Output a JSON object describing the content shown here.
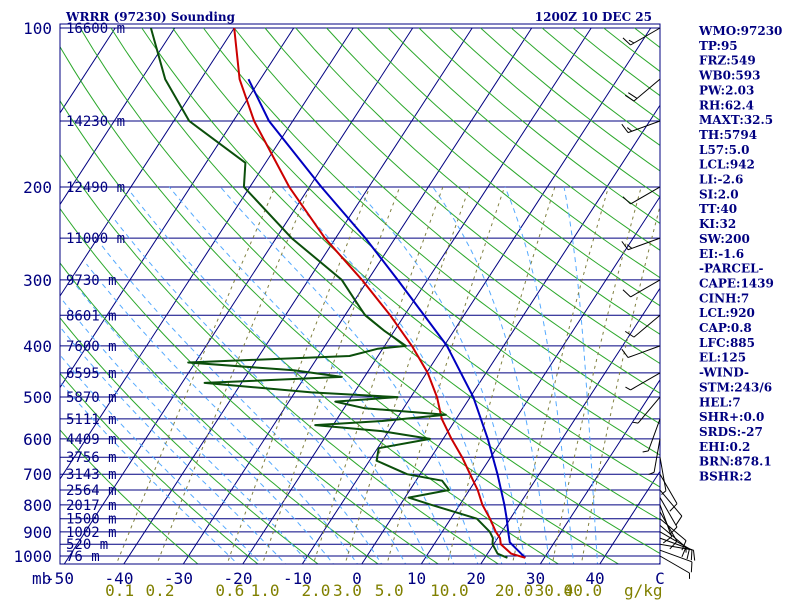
{
  "header": {
    "station": "WRRR (97230) Sounding",
    "time": "1200Z 10 DEC 25"
  },
  "colors": {
    "frame": "#000080",
    "isobar": "#000080",
    "isotherm": "#000080",
    "dry_adiabat": "#2ca82c",
    "moist_adiabat": "#55aaff",
    "mixing_ratio": "#808040",
    "temperature": "#cc0000",
    "dewpoint": "#0b4f0b",
    "parcel": "#0000c0",
    "wind": "#000000"
  },
  "chart_data": {
    "type": "skew-t",
    "title": "WRRR (97230) Sounding",
    "xlabel": "Temperature (C)",
    "ylabel": "Pressure (mb)",
    "pressure_unit": "mb",
    "mixing_ratio_unit": "g/kg",
    "pressure_ticks": [
      100,
      200,
      300,
      400,
      500,
      600,
      700,
      800,
      900,
      1000
    ],
    "temperature_ticks": [
      -50,
      -40,
      -30,
      -20,
      -10,
      0,
      10,
      20,
      30,
      40
    ],
    "temperature_tick_labels": [
      "-50",
      "-40",
      "-30",
      "-20",
      "-10",
      "0",
      "10",
      "20",
      "30",
      "40"
    ],
    "mixing_ratio_values": [
      0.1,
      0.2,
      0.6,
      1.0,
      2.0,
      3.0,
      5.0,
      10.0,
      20.0,
      30.0,
      40.0
    ],
    "mixing_ratio_labels": [
      "0.1",
      "0.2",
      "0.6",
      "1.0",
      "2.0",
      "3.0",
      "5.0",
      "10.0",
      "20.0",
      "30.0",
      "40.0"
    ],
    "height_levels": [
      {
        "p": 100,
        "label": "16600 m"
      },
      {
        "p": 150,
        "label": "14230 m"
      },
      {
        "p": 200,
        "label": "12490 m"
      },
      {
        "p": 250,
        "label": "11000 m"
      },
      {
        "p": 300,
        "label": "9730 m"
      },
      {
        "p": 350,
        "label": "8601 m"
      },
      {
        "p": 400,
        "label": "7600 m"
      },
      {
        "p": 450,
        "label": "6595 m"
      },
      {
        "p": 500,
        "label": "5870 m"
      },
      {
        "p": 550,
        "label": "5111 m"
      },
      {
        "p": 600,
        "label": "4409 m"
      },
      {
        "p": 650,
        "label": "3756 m"
      },
      {
        "p": 700,
        "label": "3143 m"
      },
      {
        "p": 750,
        "label": "2564 m"
      },
      {
        "p": 800,
        "label": "2017 m"
      },
      {
        "p": 850,
        "label": "1500 m"
      },
      {
        "p": 900,
        "label": "1002 m"
      },
      {
        "p": 950,
        "label": "520 m"
      },
      {
        "p": 1000,
        "label": "76 m"
      }
    ],
    "temperature": [
      {
        "p": 1008,
        "t": 26.8
      },
      {
        "p": 990,
        "t": 24.0
      },
      {
        "p": 950,
        "t": 21.2
      },
      {
        "p": 925,
        "t": 20.4
      },
      {
        "p": 900,
        "t": 19.0
      },
      {
        "p": 850,
        "t": 16.6
      },
      {
        "p": 800,
        "t": 13.8
      },
      {
        "p": 750,
        "t": 11.4
      },
      {
        "p": 700,
        "t": 8.4
      },
      {
        "p": 650,
        "t": 5.2
      },
      {
        "p": 600,
        "t": 1.4
      },
      {
        "p": 550,
        "t": -2.4
      },
      {
        "p": 500,
        "t": -5.6
      },
      {
        "p": 450,
        "t": -9.8
      },
      {
        "p": 400,
        "t": -15.4
      },
      {
        "p": 350,
        "t": -22.4
      },
      {
        "p": 300,
        "t": -31.0
      },
      {
        "p": 250,
        "t": -41.8
      },
      {
        "p": 200,
        "t": -53.4
      },
      {
        "p": 150,
        "t": -66.5
      },
      {
        "p": 125,
        "t": -73.5
      },
      {
        "p": 100,
        "t": -80.0
      }
    ],
    "dewpoint": [
      {
        "p": 1008,
        "t": 23.8
      },
      {
        "p": 990,
        "t": 21.7
      },
      {
        "p": 950,
        "t": 19.8
      },
      {
        "p": 925,
        "t": 19.2
      },
      {
        "p": 900,
        "t": 18.0
      },
      {
        "p": 850,
        "t": 14.4
      },
      {
        "p": 800,
        "t": 5.2
      },
      {
        "p": 775,
        "t": 0.6
      },
      {
        "p": 750,
        "t": 6.6
      },
      {
        "p": 720,
        "t": 4.4
      },
      {
        "p": 700,
        "t": -2.2
      },
      {
        "p": 660,
        "t": -8.8
      },
      {
        "p": 625,
        "t": -9.8
      },
      {
        "p": 600,
        "t": -2.2
      },
      {
        "p": 580,
        "t": -11.2
      },
      {
        "p": 565,
        "t": -23.0
      },
      {
        "p": 555,
        "t": -12.2
      },
      {
        "p": 540,
        "t": -2.2
      },
      {
        "p": 525,
        "t": -16.6
      },
      {
        "p": 510,
        "t": -22.2
      },
      {
        "p": 500,
        "t": -12.2
      },
      {
        "p": 490,
        "t": -27.2
      },
      {
        "p": 470,
        "t": -46.2
      },
      {
        "p": 458,
        "t": -23.8
      },
      {
        "p": 445,
        "t": -32.6
      },
      {
        "p": 430,
        "t": -51.2
      },
      {
        "p": 418,
        "t": -24.8
      },
      {
        "p": 405,
        "t": -20.8
      },
      {
        "p": 400,
        "t": -16.4
      },
      {
        "p": 375,
        "t": -21.6
      },
      {
        "p": 350,
        "t": -26.6
      },
      {
        "p": 330,
        "t": -29.6
      },
      {
        "p": 300,
        "t": -34.4
      },
      {
        "p": 250,
        "t": -47.4
      },
      {
        "p": 200,
        "t": -61.0
      },
      {
        "p": 180,
        "t": -63.4
      },
      {
        "p": 150,
        "t": -77.4
      },
      {
        "p": 125,
        "t": -86.0
      },
      {
        "p": 100,
        "t": -94.0
      }
    ],
    "parcel": [
      {
        "p": 1008,
        "t": 26.8
      },
      {
        "p": 942,
        "t": 22.5
      },
      {
        "p": 900,
        "t": 21.1
      },
      {
        "p": 850,
        "t": 19.4
      },
      {
        "p": 800,
        "t": 17.5
      },
      {
        "p": 700,
        "t": 13.0
      },
      {
        "p": 600,
        "t": 7.5
      },
      {
        "p": 500,
        "t": 0.5
      },
      {
        "p": 400,
        "t": -9.5
      },
      {
        "p": 300,
        "t": -25.0
      },
      {
        "p": 250,
        "t": -35.0
      },
      {
        "p": 200,
        "t": -48.0
      },
      {
        "p": 150,
        "t": -64.0
      },
      {
        "p": 125,
        "t": -72.0
      }
    ],
    "winds": [
      {
        "p": 1000,
        "dir": 120,
        "spd": 5
      },
      {
        "p": 975,
        "dir": 110,
        "spd": 10
      },
      {
        "p": 950,
        "dir": 100,
        "spd": 10
      },
      {
        "p": 925,
        "dir": 110,
        "spd": 10
      },
      {
        "p": 900,
        "dir": 120,
        "spd": 15
      },
      {
        "p": 875,
        "dir": 130,
        "spd": 10
      },
      {
        "p": 850,
        "dir": 130,
        "spd": 10
      },
      {
        "p": 825,
        "dir": 150,
        "spd": 10
      },
      {
        "p": 800,
        "dir": 160,
        "spd": 10
      },
      {
        "p": 775,
        "dir": 150,
        "spd": 10
      },
      {
        "p": 750,
        "dir": 140,
        "spd": 10
      },
      {
        "p": 700,
        "dir": 150,
        "spd": 10
      },
      {
        "p": 650,
        "dir": 170,
        "spd": 5
      },
      {
        "p": 600,
        "dir": 190,
        "spd": 5
      },
      {
        "p": 550,
        "dir": 200,
        "spd": 5
      },
      {
        "p": 500,
        "dir": 220,
        "spd": 5
      },
      {
        "p": 450,
        "dir": 240,
        "spd": 5
      },
      {
        "p": 400,
        "dir": 250,
        "spd": 10
      },
      {
        "p": 350,
        "dir": 230,
        "spd": 10
      },
      {
        "p": 300,
        "dir": 240,
        "spd": 10
      },
      {
        "p": 250,
        "dir": 250,
        "spd": 15
      },
      {
        "p": 200,
        "dir": 240,
        "spd": 10
      },
      {
        "p": 150,
        "dir": 250,
        "spd": 15
      },
      {
        "p": 125,
        "dir": 230,
        "spd": 20
      },
      {
        "p": 100,
        "dir": 240,
        "spd": 15
      }
    ],
    "indices": [
      "WMO:97230",
      "TP:95",
      "FRZ:549",
      "WB0:593",
      "PW:2.03",
      "RH:62.4",
      "MAXT:32.5",
      "TH:5794",
      "L57:5.0",
      "LCL:942",
      "LI:-2.6",
      "SI:2.0",
      "TT:40",
      "KI:32",
      "SW:200",
      "EI:-1.6",
      "-PARCEL-",
      "CAPE:1439",
      "CINH:7",
      "LCL:920",
      "CAP:0.8",
      "LFC:885",
      "EL:125",
      "-WIND-",
      "STM:243/6",
      "HEL:7",
      "SHR+:0.0",
      "SRDS:-27",
      "EHI:0.2",
      "BRN:878.1",
      "BSHR:2"
    ]
  }
}
